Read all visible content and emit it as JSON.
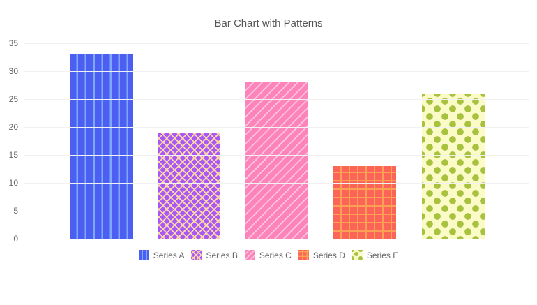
{
  "chart_data": {
    "type": "bar",
    "title": "Bar Chart with Patterns",
    "categories": [
      ""
    ],
    "series": [
      {
        "name": "Series A",
        "value": 33,
        "color": "#4c5ff2",
        "pattern": "vertical-stripes",
        "pattern_color": "#7ea9f8"
      },
      {
        "name": "Series B",
        "value": 19,
        "color": "#a958f7",
        "pattern": "crosshatch",
        "pattern_color": "#fbd8a5"
      },
      {
        "name": "Series C",
        "value": 28,
        "color": "#fc84ba",
        "pattern": "diagonal-stripes",
        "pattern_color": "#fec6dc"
      },
      {
        "name": "Series D",
        "value": 13,
        "color": "#fb6457",
        "pattern": "grid",
        "pattern_color": "#fba055"
      },
      {
        "name": "Series E",
        "value": 26,
        "color": "#fafbc6",
        "pattern": "dots",
        "pattern_color": "#a8c23f"
      }
    ],
    "ylim": [
      0,
      35
    ],
    "yticks": [
      0,
      5,
      10,
      15,
      20,
      25,
      30,
      35
    ],
    "xlabel": "",
    "ylabel": "",
    "grid": true,
    "legend_position": "bottom",
    "text_color": "#666666",
    "title_color": "#555555",
    "gridline_color": "#f1f1f2"
  }
}
